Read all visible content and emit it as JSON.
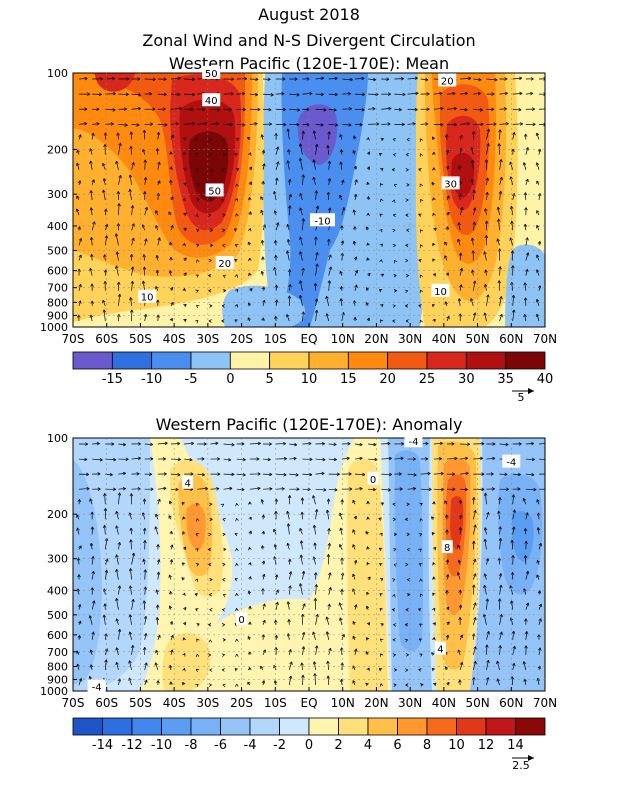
{
  "header": {
    "line1": "August 2018",
    "line2": "Zonal Wind and N-S Divergent Circulation",
    "line3": "Western Pacific (120E-170E): Mean"
  },
  "colors": {
    "mean_levels": [
      "#6a5acd",
      "#2f6fe0",
      "#4a8ff0",
      "#8ec4f5",
      "#fff3a8",
      "#ffd35a",
      "#ffb02e",
      "#ff8a10",
      "#f25a12",
      "#d8281e",
      "#b01010",
      "#7a0606"
    ],
    "anom_levels": [
      "#1f55c8",
      "#2d6ee0",
      "#4286ee",
      "#5b9df2",
      "#78b1f6",
      "#95c4f8",
      "#b3d7fa",
      "#cfe8fc",
      "#fff5b0",
      "#ffe07a",
      "#ffc04a",
      "#ff9830",
      "#f56a1c",
      "#e03818",
      "#c01818",
      "#8a0808"
    ]
  },
  "chart_data": [
    {
      "type": "heatmap",
      "title": "Western Pacific (120E-170E): Mean",
      "xlabel": "",
      "ylabel": "",
      "x_ticks": [
        "70S",
        "60S",
        "50S",
        "40S",
        "30S",
        "20S",
        "10S",
        "EQ",
        "10N",
        "20N",
        "30N",
        "40N",
        "50N",
        "60N",
        "70N"
      ],
      "y_ticks": [
        "100",
        "200",
        "300",
        "400",
        "500",
        "600",
        "700",
        "800",
        "900",
        "1000"
      ],
      "xlim": [
        -70,
        70
      ],
      "ylim": [
        1000,
        100
      ],
      "y_scale": "log",
      "colorbar_labels": [
        "-15",
        "-10",
        "-5",
        "0",
        "5",
        "10",
        "15",
        "20",
        "25",
        "30",
        "35",
        "40"
      ],
      "contour_labels": [
        {
          "text": "50",
          "lat": -29,
          "p": 100
        },
        {
          "text": "40",
          "lat": -29,
          "p": 128
        },
        {
          "text": "50",
          "lat": -28,
          "p": 290
        },
        {
          "text": "20",
          "lat": -25,
          "p": 560
        },
        {
          "text": "10",
          "lat": -48,
          "p": 760
        },
        {
          "text": "-10",
          "lat": 4,
          "p": 380
        },
        {
          "text": "20",
          "lat": 41,
          "p": 107
        },
        {
          "text": "30",
          "lat": 42,
          "p": 272
        },
        {
          "text": "10",
          "lat": 39,
          "p": 720
        }
      ],
      "reference_vector": "5"
    },
    {
      "type": "heatmap",
      "title": "Western Pacific (120E-170E): Anomaly",
      "xlabel": "",
      "ylabel": "",
      "x_ticks": [
        "70S",
        "60S",
        "50S",
        "40S",
        "30S",
        "20S",
        "10S",
        "EQ",
        "10N",
        "20N",
        "30N",
        "40N",
        "50N",
        "60N",
        "70N"
      ],
      "y_ticks": [
        "100",
        "200",
        "300",
        "400",
        "500",
        "600",
        "700",
        "800",
        "900",
        "1000"
      ],
      "xlim": [
        -70,
        70
      ],
      "ylim": [
        1000,
        100
      ],
      "y_scale": "log",
      "colorbar_labels": [
        "-14",
        "-12",
        "-10",
        "-8",
        "-6",
        "-4",
        "-2",
        "0",
        "2",
        "4",
        "6",
        "8",
        "10",
        "12",
        "14"
      ],
      "contour_labels": [
        {
          "text": "4",
          "lat": -36,
          "p": 150
        },
        {
          "text": "0",
          "lat": -20,
          "p": 520
        },
        {
          "text": "0",
          "lat": 19,
          "p": 145
        },
        {
          "text": "-4",
          "lat": 31,
          "p": 103
        },
        {
          "text": "-4",
          "lat": 60,
          "p": 124
        },
        {
          "text": "8",
          "lat": 41,
          "p": 270
        },
        {
          "text": "4",
          "lat": 39,
          "p": 680
        },
        {
          "text": "-4",
          "lat": -63,
          "p": 960
        }
      ],
      "reference_vector": "2.5"
    }
  ]
}
